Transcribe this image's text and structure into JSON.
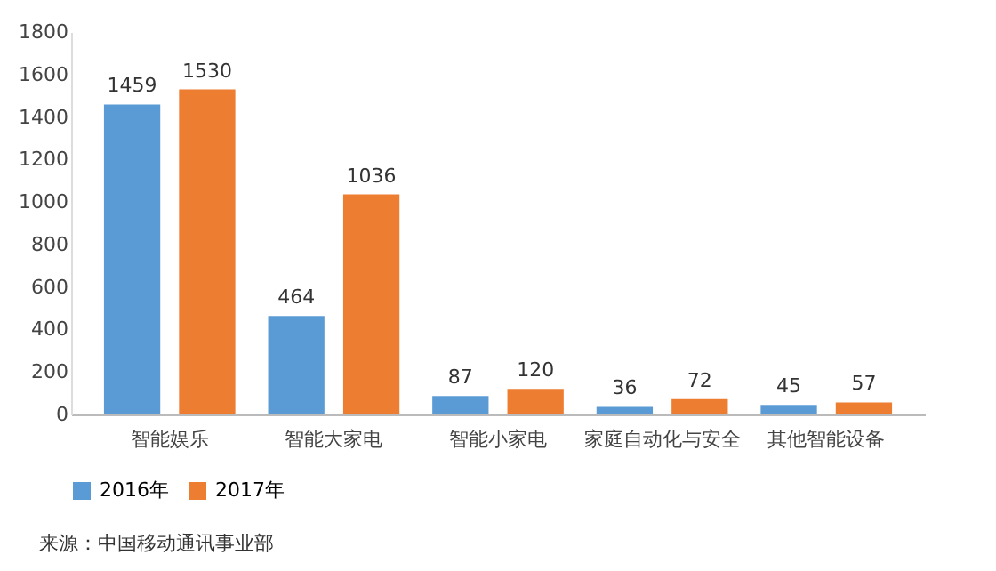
{
  "chart_data": {
    "type": "bar",
    "categories": [
      "智能娱乐",
      "智能大家电",
      "智能小家电",
      "家庭自动化与安全",
      "其他智能设备"
    ],
    "series": [
      {
        "name": "2016年",
        "color": "#5b9bd5",
        "values": [
          1459,
          464,
          87,
          36,
          45
        ]
      },
      {
        "name": "2017年",
        "color": "#ed7d31",
        "values": [
          1530,
          1036,
          120,
          72,
          57
        ]
      }
    ],
    "ylim": [
      0,
      1800
    ],
    "yticks": [
      0,
      200,
      400,
      600,
      800,
      1000,
      1200,
      1400,
      1600,
      1800
    ],
    "grid": false,
    "legend": "bottom",
    "data_labels": true,
    "annotations": [
      "来源：中国移动通讯事业部"
    ]
  }
}
